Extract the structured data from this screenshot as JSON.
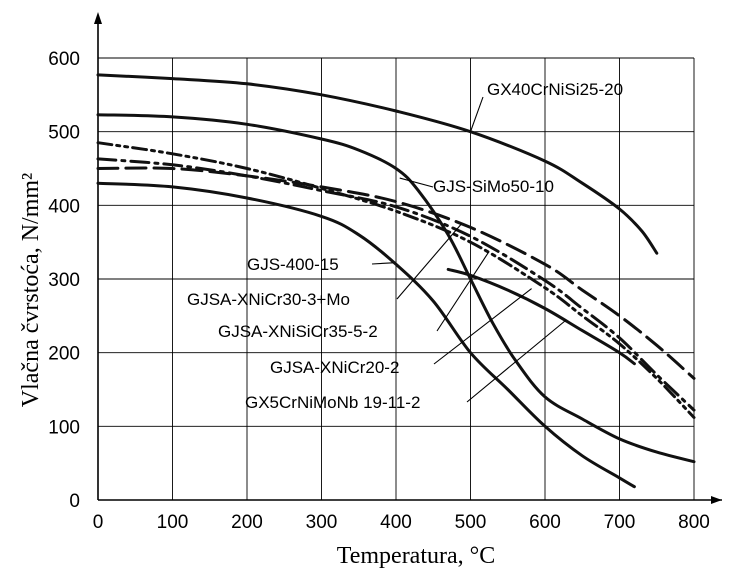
{
  "chart_data": {
    "type": "line",
    "title": "",
    "xlabel": "Temperatura, °C",
    "ylabel": "Vlačna čvrstoća, N/mm²",
    "xlim": [
      0,
      800
    ],
    "ylim": [
      0,
      600
    ],
    "xticks": [
      0,
      100,
      200,
      300,
      400,
      500,
      600,
      700,
      800
    ],
    "yticks": [
      0,
      100,
      200,
      300,
      400,
      500,
      600
    ],
    "grid": true,
    "legend": "none",
    "series": [
      {
        "name": "GX40CrNiSi25-20",
        "style": "solid",
        "x": [
          0,
          100,
          200,
          300,
          400,
          500,
          600,
          650,
          700,
          730,
          750
        ],
        "y": [
          577,
          572,
          565,
          550,
          528,
          500,
          460,
          430,
          395,
          365,
          335
        ]
      },
      {
        "name": "GJS-SiMo50-10",
        "style": "solid",
        "x": [
          0,
          100,
          200,
          300,
          350,
          400,
          430,
          470,
          500,
          530,
          560,
          600,
          650,
          700,
          750,
          800
        ],
        "y": [
          523,
          520,
          510,
          490,
          475,
          450,
          420,
          360,
          300,
          240,
          190,
          140,
          110,
          83,
          65,
          52
        ]
      },
      {
        "name": "GJS-400-15",
        "style": "solid",
        "x": [
          0,
          100,
          200,
          300,
          350,
          400,
          450,
          500,
          550,
          600,
          650,
          700,
          720
        ],
        "y": [
          430,
          425,
          410,
          385,
          360,
          320,
          270,
          200,
          150,
          100,
          60,
          30,
          18
        ]
      },
      {
        "name": "GJSA-XNiCr30-3+Mo",
        "style": "dash",
        "x": [
          0,
          100,
          200,
          300,
          400,
          500,
          600,
          650,
          700,
          750,
          800
        ],
        "y": [
          450,
          450,
          440,
          425,
          405,
          370,
          320,
          285,
          250,
          210,
          165
        ]
      },
      {
        "name": "GJSA-XNiSiCr35-5-2",
        "style": "dash-dot",
        "x": [
          0,
          100,
          200,
          300,
          400,
          500,
          600,
          650,
          700,
          750,
          800
        ],
        "y": [
          463,
          455,
          440,
          420,
          398,
          358,
          298,
          260,
          220,
          170,
          122
        ]
      },
      {
        "name": "GJSA-XNiCr20-2",
        "style": "dash-dot-dot",
        "x": [
          0,
          100,
          200,
          300,
          400,
          500,
          600,
          650,
          700,
          750,
          800
        ],
        "y": [
          485,
          470,
          450,
          423,
          392,
          350,
          288,
          250,
          212,
          165,
          112
        ]
      },
      {
        "name": "GX5CrNiMoNb 19-11-2",
        "style": "solid",
        "x": [
          470,
          500,
          550,
          600,
          650,
          700,
          720
        ],
        "y": [
          313,
          305,
          285,
          260,
          230,
          200,
          185
        ]
      }
    ],
    "annotations": [
      {
        "text": "GX40CrNiSi25-20",
        "series": 0
      },
      {
        "text": "GJS-SiMo50-10",
        "series": 1
      },
      {
        "text": "GJS-400-15",
        "series": 2
      },
      {
        "text": "GJSA-XNiCr30-3+Mo",
        "series": 3
      },
      {
        "text": "GJSA-XNiSiCr35-5-2",
        "series": 4
      },
      {
        "text": "GJSA-XNiCr20-2",
        "series": 5
      },
      {
        "text": "GX5CrNiMoNb 19-11-2",
        "series": 6
      }
    ]
  }
}
